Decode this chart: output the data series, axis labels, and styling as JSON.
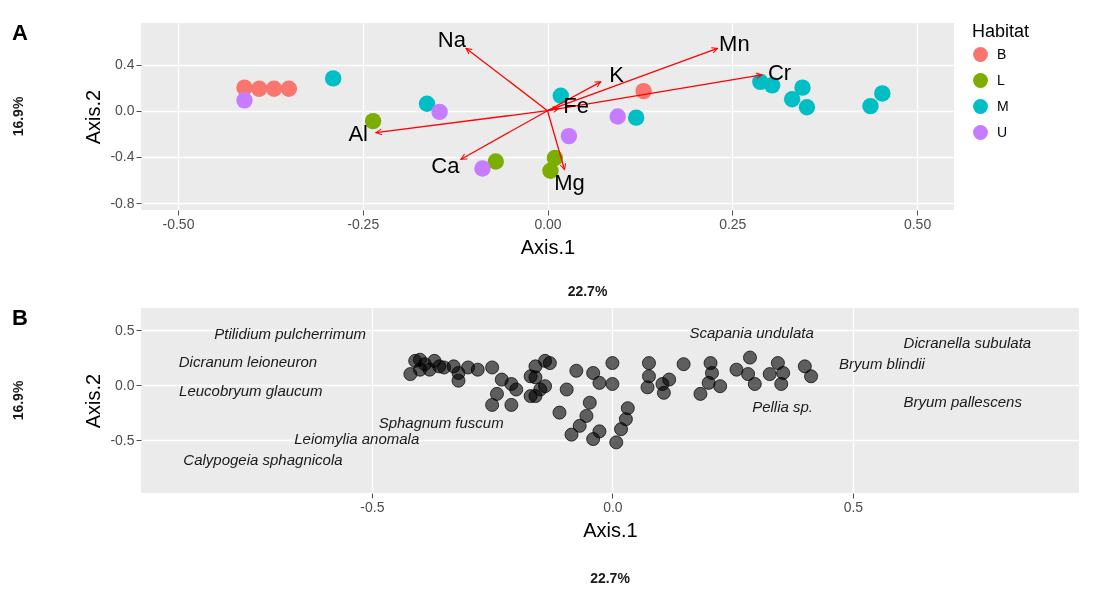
{
  "chart_data": [
    {
      "type": "scatter",
      "title": "A",
      "xlabel": "Axis.1",
      "ylabel": "Axis.2",
      "legend_title": "Habitat",
      "legend": "right",
      "grid": true,
      "xlim": [
        -0.55,
        0.55
      ],
      "ylim": [
        -0.86,
        0.76
      ],
      "xticks": [
        {
          "value": -0.5,
          "label": "-0.50"
        },
        {
          "value": -0.25,
          "label": "-0.25"
        },
        {
          "value": 0,
          "label": "0.00"
        },
        {
          "value": 0.25,
          "label": "0.25"
        },
        {
          "value": 0.5,
          "label": "0.50"
        }
      ],
      "yticks": [
        -0.8,
        -0.4,
        {
          "value": 0,
          "label": "0.0"
        },
        0.4
      ],
      "annotations": [
        "16.9%",
        "22.7%"
      ],
      "series": [
        {
          "name": "B",
          "marker": "circle",
          "color": "#f8766d",
          "x": [
            -0.41,
            -0.39,
            -0.37,
            -0.35,
            0.13
          ],
          "values": [
            0.2,
            0.19,
            0.19,
            0.19,
            0.17
          ]
        },
        {
          "name": "L",
          "marker": "circle",
          "color": "#7cae00",
          "x": [
            -0.236,
            -0.07,
            0.01,
            0.004
          ],
          "values": [
            -0.09,
            -0.44,
            -0.41,
            -0.52
          ]
        },
        {
          "name": "M",
          "marker": "circle",
          "color": "#00bfc4",
          "x": [
            -0.29,
            -0.163,
            0.018,
            0.12,
            0.288,
            0.304,
            0.345,
            0.331,
            0.351,
            0.437,
            0.453
          ],
          "values": [
            0.28,
            0.06,
            0.13,
            -0.06,
            0.25,
            0.22,
            0.2,
            0.1,
            0.03,
            0.04,
            0.15
          ]
        },
        {
          "name": "U",
          "marker": "circle",
          "color": "#c77cff",
          "x": [
            -0.41,
            -0.146,
            -0.088,
            0.029,
            0.095
          ],
          "values": [
            0.09,
            -0.01,
            -0.5,
            -0.22,
            -0.05
          ]
        },
        {
          "type": "line",
          "name": "Na",
          "color": "#ff0000",
          "x": [
            0,
            -0.11
          ],
          "values": [
            0,
            0.54
          ]
        },
        {
          "type": "line",
          "name": "Al",
          "color": "#ff0000",
          "x": [
            0,
            -0.232
          ],
          "values": [
            0,
            -0.19
          ]
        },
        {
          "type": "line",
          "name": "Ca",
          "color": "#ff0000",
          "x": [
            0,
            -0.117
          ],
          "values": [
            0,
            -0.42
          ]
        },
        {
          "type": "line",
          "name": "Mg",
          "color": "#ff0000",
          "x": [
            0,
            0.023
          ],
          "values": [
            0,
            -0.51
          ]
        },
        {
          "type": "line",
          "name": "K",
          "color": "#ff0000",
          "x": [
            0,
            0.072
          ],
          "values": [
            0,
            0.25
          ]
        },
        {
          "type": "line",
          "name": "Mn",
          "color": "#ff0000",
          "x": [
            0,
            0.23
          ],
          "values": [
            0,
            0.54
          ]
        },
        {
          "type": "line",
          "name": "Cr",
          "color": "#ff0000",
          "x": [
            0,
            0.29
          ],
          "values": [
            0,
            0.31
          ]
        },
        {
          "type": "line",
          "name": "Fe",
          "color": "#ff0000",
          "x": [
            0,
            0.015
          ],
          "values": [
            0,
            0.02
          ]
        }
      ]
    },
    {
      "type": "scatter",
      "title": "B",
      "xlabel": "Axis.1",
      "ylabel": "Axis.2",
      "marker": "circle",
      "grid": true,
      "xlim": [
        -0.98,
        0.97
      ],
      "ylim": [
        -0.98,
        0.7
      ],
      "xticks": [
        -0.5,
        {
          "value": 0,
          "label": "0.0"
        },
        0.5
      ],
      "yticks": [
        -0.5,
        {
          "value": 0,
          "label": "0.0"
        },
        0.5
      ],
      "annotations": [
        "16.9%",
        "22.7%",
        "Ptilidium pulcherrimum",
        "Dicranum leioneuron",
        "Leucobryum glaucum",
        "Sphagnum fuscum",
        "Leiomylia anomala",
        "Calypogeia sphagnicola",
        "Scapania undulata",
        "Dicranella subulata",
        "Bryum blindii",
        "Pellia sp.",
        "Bryum pallescens"
      ],
      "series": [
        {
          "color": "#000000",
          "x": [
            -0.41,
            -0.4,
            -0.4,
            -0.42,
            -0.39,
            -0.37,
            -0.38,
            -0.36,
            -0.35,
            -0.33,
            -0.32,
            -0.3,
            -0.28,
            -0.25,
            -0.32,
            -0.23,
            -0.21,
            -0.24,
            -0.25,
            -0.21,
            -0.2,
            -0.16,
            -0.14,
            -0.16,
            -0.15,
            -0.17,
            -0.17,
            -0.13,
            -0.14,
            -0.16,
            -0.075,
            -0.095,
            -0.11,
            -0.04,
            -0.027,
            0,
            0,
            -0.047,
            -0.054,
            -0.085,
            -0.068,
            -0.04,
            -0.027,
            0.008,
            0.018,
            0.028,
            0.032,
            0.076,
            0.076,
            0.073,
            0.104,
            0.118,
            0.107,
            0.148,
            0.183,
            0.204,
            0.207,
            0.2,
            0.224,
            0.258,
            0.286,
            0.282,
            0.296,
            0.327,
            0.344,
            0.355,
            0.351,
            0.4,
            0.413
          ],
          "values": [
            0.22,
            0.23,
            0.14,
            0.1,
            0.19,
            0.22,
            0.14,
            0.17,
            0.16,
            0.17,
            0.11,
            0.16,
            0.14,
            0.16,
            0.04,
            0.05,
            0.01,
            -0.08,
            -0.18,
            -0.18,
            -0.04,
            0.17,
            0.22,
            0.07,
            -0.04,
            -0.1,
            0.08,
            0.2,
            -0.01,
            -0.1,
            0.13,
            -0.04,
            -0.25,
            0.11,
            0.02,
            0.01,
            0.2,
            -0.16,
            -0.28,
            -0.45,
            -0.37,
            -0.49,
            -0.42,
            -0.52,
            -0.4,
            -0.31,
            -0.21,
            0.2,
            0.08,
            -0.02,
            0.01,
            0.05,
            -0.07,
            0.19,
            -0.08,
            0.2,
            0.11,
            0.02,
            -0.01,
            0.14,
            0.25,
            0.1,
            0.01,
            0.1,
            0.2,
            0.11,
            0.01,
            0.17,
            0.08
          ]
        }
      ]
    }
  ]
}
